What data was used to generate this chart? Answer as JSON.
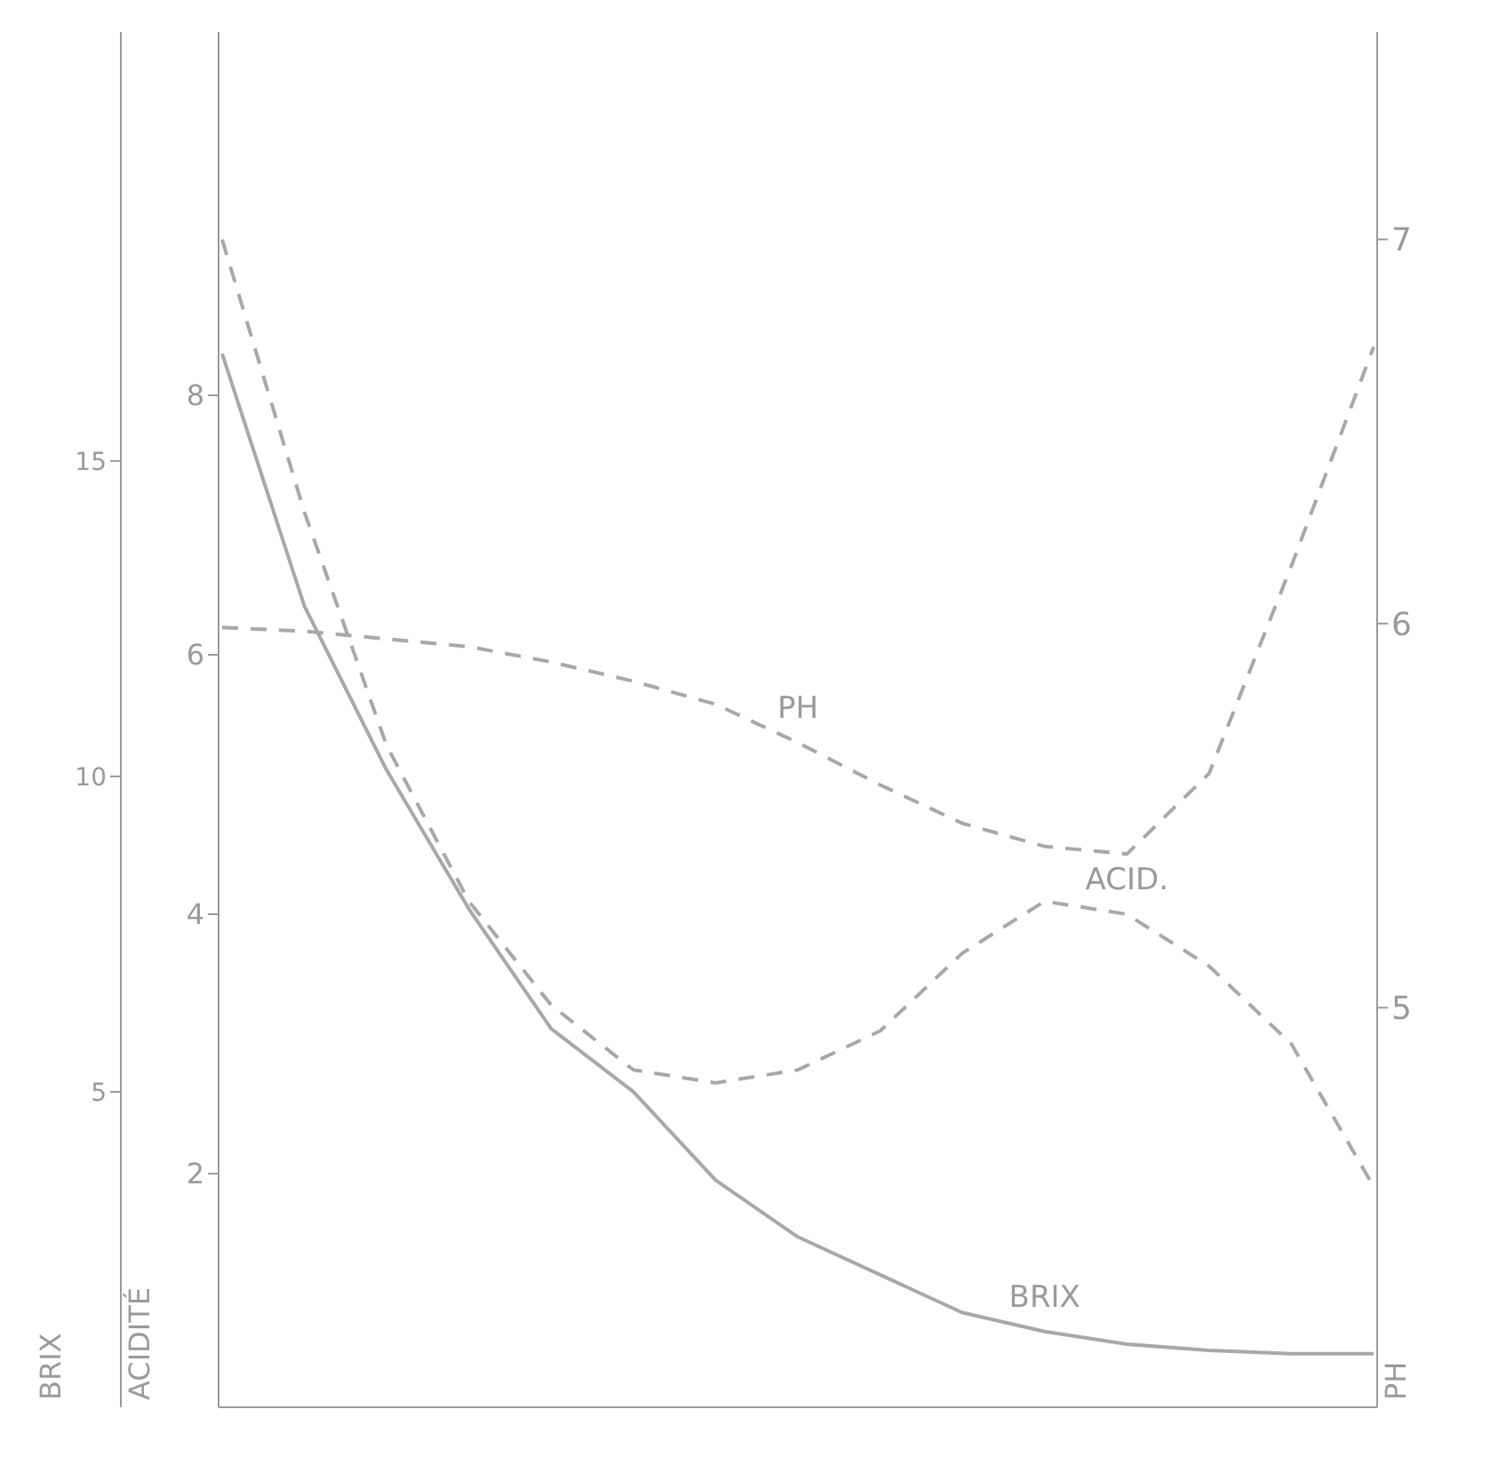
{
  "chart_data": {
    "type": "line",
    "ylabel": "ACIDITÉ",
    "y3label": "BRIX",
    "y2label": "PH",
    "categories": [
      null,
      null,
      null,
      null,
      null,
      null,
      null,
      null,
      null,
      null,
      null,
      null,
      null,
      null,
      null
    ],
    "ylim": [
      0.2,
      10.8
    ],
    "yticks": [
      2,
      4,
      6,
      8
    ],
    "y3lim": [
      0,
      21.8
    ],
    "y3ticks": [
      5,
      10,
      15
    ],
    "y2lim": [
      3.96,
      7.54
    ],
    "y2ticks": [
      5,
      6,
      7
    ],
    "tick_labels": "y",
    "marker": "none",
    "series": [
      {
        "name": "BRIX",
        "color": "#a8a8a8",
        "axis": "y3",
        "line_style": "solid",
        "values": [
          16.7,
          12.7,
          10.1,
          7.9,
          6.0,
          5.0,
          3.6,
          2.7,
          2.1,
          1.5,
          1.2,
          1.0,
          0.9,
          0.85,
          0.85
        ]
      },
      {
        "name": "ACID.",
        "color": "#a8a8a8",
        "axis": "y",
        "line_style": "dashed",
        "values": [
          9.2,
          7.1,
          5.3,
          4.1,
          3.3,
          2.8,
          2.7,
          2.8,
          3.1,
          3.7,
          4.1,
          4.0,
          3.6,
          3.0,
          1.9
        ]
      },
      {
        "name": "PH",
        "color": "#a8a8a8",
        "axis": "y2",
        "line_style": "dashed",
        "values": [
          5.99,
          5.98,
          5.96,
          5.94,
          5.9,
          5.85,
          5.79,
          5.69,
          5.58,
          5.48,
          5.42,
          5.4,
          5.61,
          6.15,
          6.72
        ]
      }
    ]
  }
}
